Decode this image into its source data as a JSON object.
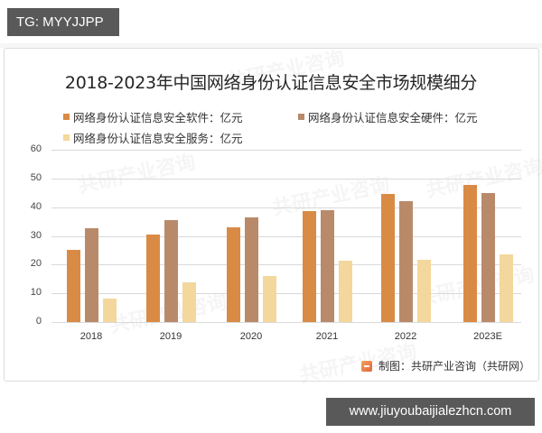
{
  "top_tag": "TG: MYYJJPP",
  "bottom_tag": "www.jiuyoubaijialezhcn.com",
  "source": "制图：共研产业咨询（共研网）",
  "watermark_text": "共研产业咨询",
  "colors": {
    "software": "#d98b46",
    "hardware": "#b98a6a",
    "service": "#f3d79c"
  },
  "chart_data": {
    "type": "bar",
    "title": "2018-2023年中国网络身份认证信息安全市场规模细分",
    "categories": [
      "2018",
      "2019",
      "2020",
      "2021",
      "2022",
      "2023E"
    ],
    "series": [
      {
        "name": "网络身份认证信息安全软件：亿元",
        "key": "software",
        "values": [
          25.1,
          30.5,
          33.0,
          38.7,
          44.7,
          47.8
        ]
      },
      {
        "name": "网络身份认证信息安全硬件：亿元",
        "key": "hardware",
        "values": [
          32.7,
          35.5,
          36.5,
          39.0,
          42.1,
          45.0
        ]
      },
      {
        "name": "网络身份认证信息安全服务：亿元",
        "key": "service",
        "values": [
          8.2,
          13.8,
          16.0,
          21.4,
          21.7,
          23.6
        ]
      }
    ],
    "xlabel": "",
    "ylabel": "",
    "ylim": [
      0,
      60
    ],
    "yticks": [
      0,
      10,
      20,
      30,
      40,
      50,
      60
    ],
    "grid": true,
    "legend_position": "top"
  }
}
